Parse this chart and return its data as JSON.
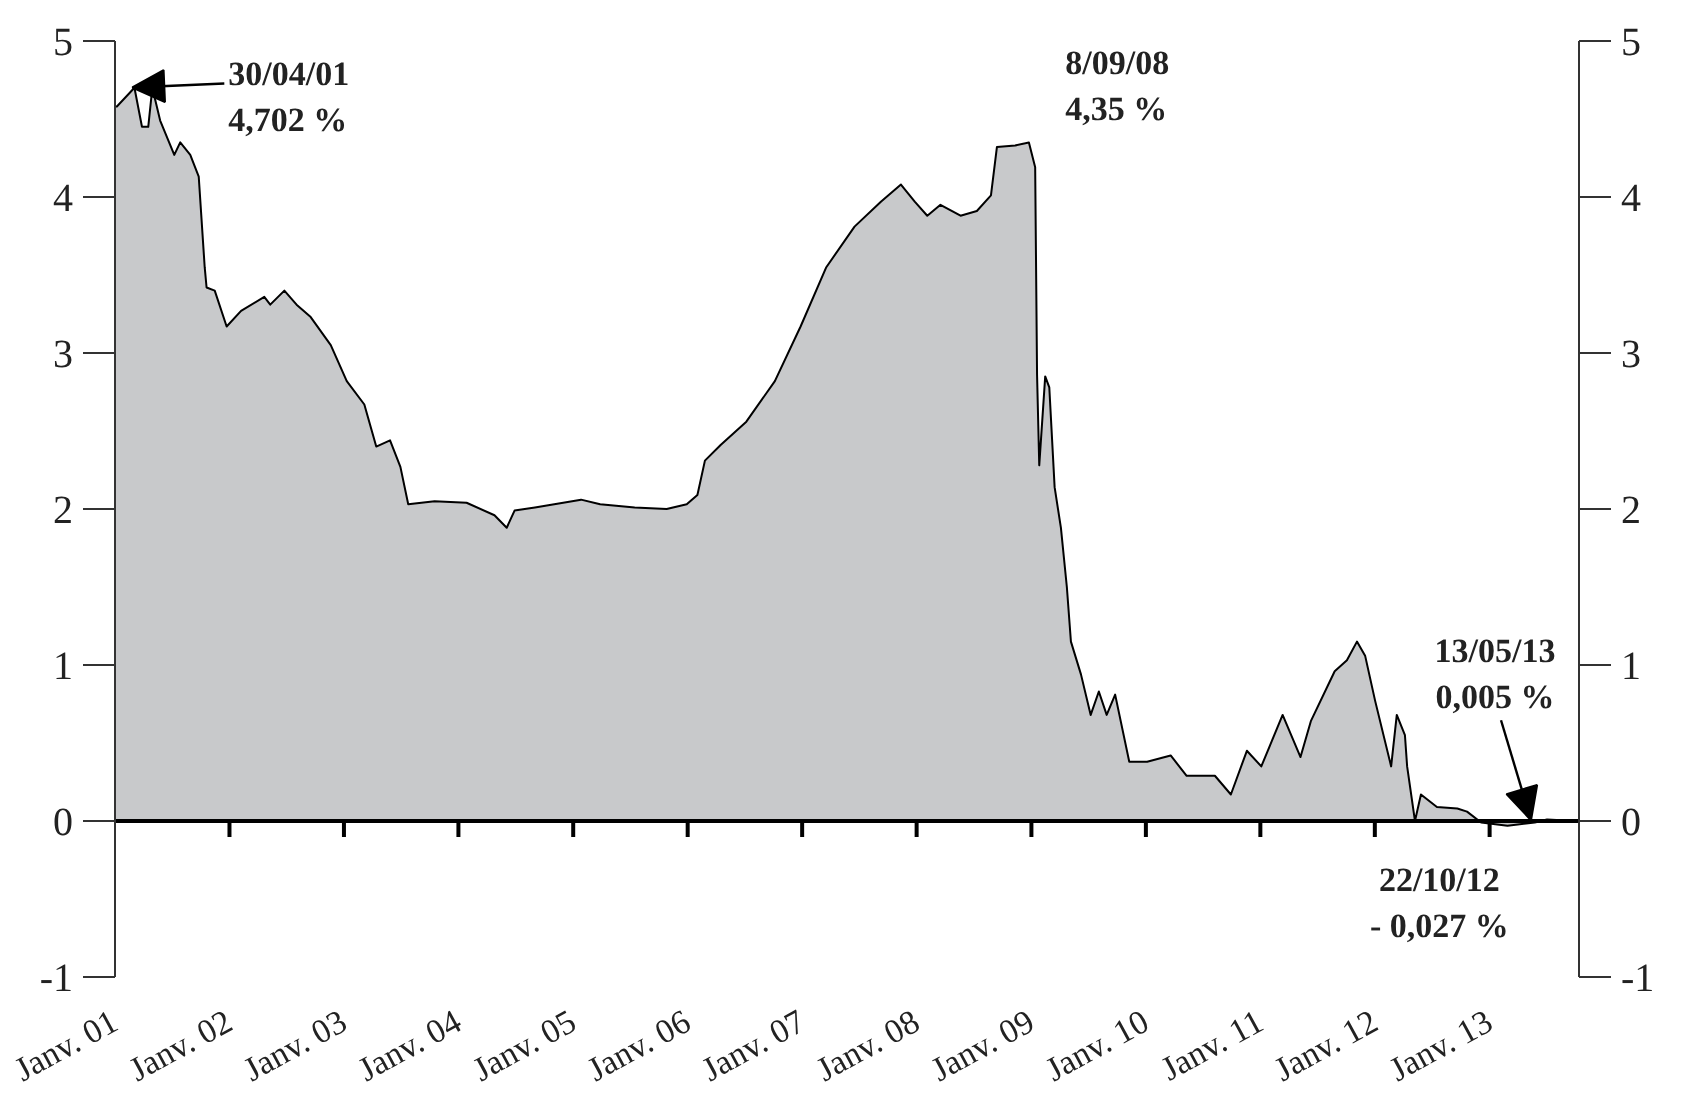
{
  "chart_data": {
    "type": "area",
    "x": [
      "2001-01-01",
      "2001-01-07",
      "2001-03-04",
      "2001-03-28",
      "2001-04-17",
      "2001-04-30",
      "2001-05-25",
      "2001-07-09",
      "2001-07-28",
      "2001-08-29",
      "2001-09-25",
      "2001-10-14",
      "2001-10-20",
      "2001-11-15",
      "2001-12-23",
      "2002-02-07",
      "2002-04-22",
      "2002-05-11",
      "2002-06-25",
      "2002-08-03",
      "2002-09-17",
      "2002-11-20",
      "2003-01-10",
      "2003-03-07",
      "2003-04-14",
      "2003-05-28",
      "2003-06-30",
      "2003-07-25",
      "2003-10-17",
      "2004-01-27",
      "2004-04-25",
      "2004-06-03",
      "2004-06-28",
      "2004-09-01",
      "2005-01-26",
      "2005-03-28",
      "2005-07-16",
      "2005-10-26",
      "2005-12-29",
      "2006-02-01",
      "2006-02-25",
      "2006-04-16",
      "2006-07-07",
      "2006-10-06",
      "2006-12-27",
      "2007-03-19",
      "2007-06-17",
      "2007-09-09",
      "2007-11-12",
      "2007-12-26",
      "2008-02-04",
      "2008-03-17",
      "2008-05-20",
      "2008-07-11",
      "2008-08-25",
      "2008-09-13",
      "2008-11-10",
      "2008-12-24",
      "2009-01-13",
      "2009-01-19",
      "2009-01-26",
      "2009-02-14",
      "2009-02-27",
      "2009-03-16",
      "2009-04-05",
      "2009-04-24",
      "2009-05-07",
      "2009-06-08",
      "2009-07-09",
      "2009-08-04",
      "2009-08-29",
      "2009-09-25",
      "2009-11-09",
      "2010-01-05",
      "2010-03-21",
      "2010-05-11",
      "2010-08-09",
      "2010-09-29",
      "2010-11-19",
      "2011-01-04",
      "2011-03-13",
      "2011-05-09",
      "2011-06-11",
      "2011-08-26",
      "2011-10-04",
      "2011-11-05",
      "2011-12-01",
      "2012-01-02",
      "2012-02-22",
      "2012-03-11",
      "2012-04-06",
      "2012-04-13",
      "2012-05-08",
      "2012-05-27",
      "2012-07-17",
      "2012-09-20",
      "2012-10-21",
      "2012-12-05",
      "2013-02-27",
      "2013-05-25",
      "2013-07-03",
      "2013-10-01"
    ],
    "series": [
      {
        "color": "#c8c9cb",
        "values": [
          4.58,
          4.58,
          4.7,
          4.45,
          4.45,
          4.7,
          4.49,
          4.27,
          4.35,
          4.27,
          4.13,
          3.55,
          3.42,
          3.4,
          3.17,
          3.27,
          3.36,
          3.31,
          3.4,
          3.31,
          3.23,
          3.05,
          2.82,
          2.67,
          2.4,
          2.44,
          2.27,
          2.03,
          2.05,
          2.04,
          1.96,
          1.88,
          1.99,
          2.01,
          2.06,
          2.03,
          2.01,
          2.0,
          2.03,
          2.09,
          2.31,
          2.41,
          2.56,
          2.82,
          3.17,
          3.55,
          3.81,
          3.97,
          4.08,
          3.97,
          3.88,
          3.95,
          3.88,
          3.91,
          4.01,
          4.32,
          4.33,
          4.35,
          4.19,
          2.86,
          2.28,
          2.85,
          2.78,
          2.14,
          1.88,
          1.5,
          1.15,
          0.94,
          0.68,
          0.83,
          0.68,
          0.81,
          0.38,
          0.38,
          0.42,
          0.29,
          0.29,
          0.17,
          0.45,
          0.35,
          0.68,
          0.41,
          0.64,
          0.96,
          1.03,
          1.15,
          1.06,
          0.77,
          0.35,
          0.68,
          0.55,
          0.35,
          0.0,
          0.17,
          0.09,
          0.08,
          0.06,
          -0.01,
          -0.03,
          -0.01,
          0.01,
          0.0
        ]
      }
    ],
    "xlim": [
      "2001-01-01",
      "2013-10-13"
    ],
    "xticks": [
      {
        "value": "2001-01-01",
        "label": "Janv. 01"
      },
      {
        "value": "2002-01-01",
        "label": "Janv. 02"
      },
      {
        "value": "2003-01-01",
        "label": "Janv. 03"
      },
      {
        "value": "2004-01-01",
        "label": "Janv. 04"
      },
      {
        "value": "2005-01-01",
        "label": "Janv. 05"
      },
      {
        "value": "2006-01-01",
        "label": "Janv. 06"
      },
      {
        "value": "2007-01-01",
        "label": "Janv. 07"
      },
      {
        "value": "2008-01-01",
        "label": "Janv. 08"
      },
      {
        "value": "2009-01-01",
        "label": "Janv. 09"
      },
      {
        "value": "2010-01-01",
        "label": "Janv. 10"
      },
      {
        "value": "2011-01-01",
        "label": "Janv. 11"
      },
      {
        "value": "2012-01-01",
        "label": "Janv. 12"
      },
      {
        "value": "2013-01-01",
        "label": "Janv. 13"
      }
    ],
    "ylim": [
      -1,
      5
    ],
    "yticks": [
      -1,
      0,
      1,
      2,
      3,
      4,
      5
    ],
    "y2lim": [
      -1,
      5
    ],
    "y2ticks": [
      -1,
      0,
      1,
      2,
      3,
      4,
      5
    ],
    "ref_lines": [
      {
        "axis": "y",
        "value": 0,
        "color": "#000000"
      }
    ],
    "grid": false,
    "annotations": [
      {
        "text": "30/04/01\n4,702 %",
        "x": "2001-04-30",
        "y": 4.702
      },
      {
        "text": "8/09/08\n4,35 %",
        "x": "2008-09-08",
        "y": 4.35
      },
      {
        "text": "13/05/13\n0,005 %",
        "x": "2013-05-13",
        "y": 0.005
      },
      {
        "text": "22/10/12\n- 0,027 %",
        "x": "2012-10-22",
        "y": -0.027
      }
    ]
  }
}
